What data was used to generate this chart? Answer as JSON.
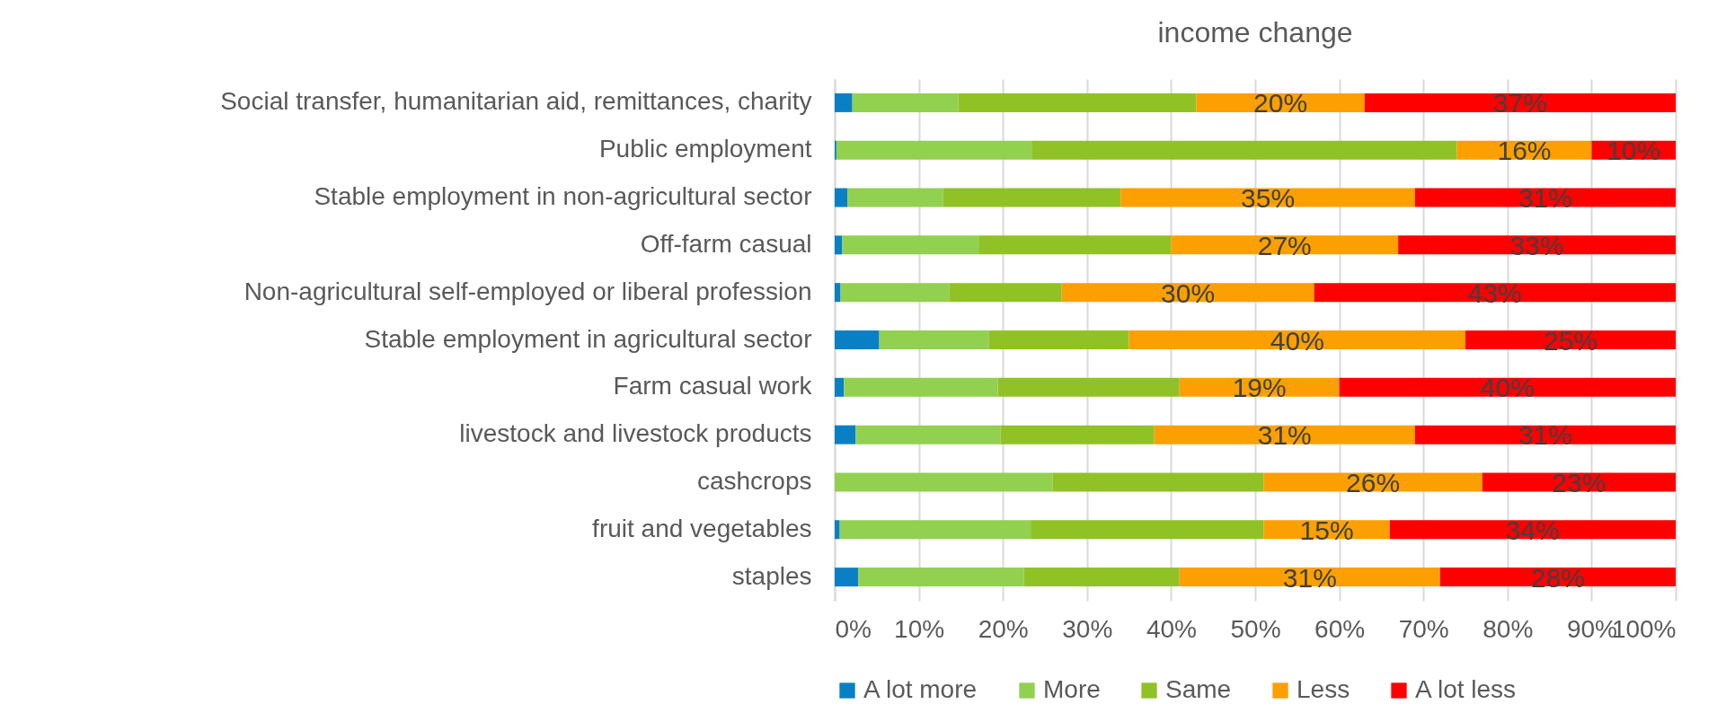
{
  "chart_data": {
    "type": "bar",
    "orientation": "horizontal",
    "stacked": true,
    "title": "income change",
    "categories": [
      "Social transfer, humanitarian aid, remittances, charity",
      "Public employment",
      "Stable employment in non-agricultural sector",
      "Off-farm casual",
      "Non-agricultural self-employed or liberal profession",
      "Stable employment in agricultural sector",
      "Farm casual work",
      "livestock and livestock products",
      "cashcrops",
      "fruit and vegetables",
      "staples"
    ],
    "series": [
      {
        "name": "A lot more",
        "color": "#0a80c4",
        "values": [
          2.1,
          0.2,
          1.5,
          0.9,
          0.7,
          5.3,
          1.1,
          2.5,
          0,
          0.6,
          2.8
        ]
      },
      {
        "name": "More",
        "color": "#92d050",
        "values": [
          12.6,
          23.3,
          11.4,
          16.3,
          12.9,
          13.0,
          18.3,
          17.2,
          25.9,
          22.7,
          19.7
        ]
      },
      {
        "name": "Same",
        "color": "#90c226",
        "values": [
          28.3,
          50.5,
          21.1,
          22.8,
          13.4,
          16.7,
          21.6,
          18.3,
          25.1,
          27.7,
          18.5
        ]
      },
      {
        "name": "Less",
        "color": "#fba000",
        "values": [
          20,
          16,
          35,
          27,
          30,
          40,
          19,
          31,
          26,
          15,
          31
        ],
        "value_labels": [
          "20%",
          "16%",
          "35%",
          "27%",
          "30%",
          "40%",
          "19%",
          "31%",
          "26%",
          "15%",
          "31%"
        ]
      },
      {
        "name": "A lot less",
        "color": "#ff0000",
        "values": [
          37,
          10,
          31,
          33,
          43,
          25,
          40,
          31,
          23,
          34,
          28
        ],
        "value_labels": [
          "37%",
          "10%",
          "31%",
          "33%",
          "43%",
          "25%",
          "40%",
          "31%",
          "23%",
          "34%",
          "28%"
        ]
      }
    ],
    "xlim": [
      0,
      100
    ],
    "xticks": [
      {
        "value": 0,
        "label": "0%"
      },
      {
        "value": 10,
        "label": "10%"
      },
      {
        "value": 20,
        "label": "20%"
      },
      {
        "value": 30,
        "label": "30%"
      },
      {
        "value": 40,
        "label": "40%"
      },
      {
        "value": 50,
        "label": "50%"
      },
      {
        "value": 60,
        "label": "60%"
      },
      {
        "value": 70,
        "label": "70%"
      },
      {
        "value": 80,
        "label": "80%"
      },
      {
        "value": 90,
        "label": "90%"
      },
      {
        "value": 100,
        "label": "100%"
      }
    ],
    "grid": "x",
    "legend": "bottom"
  }
}
